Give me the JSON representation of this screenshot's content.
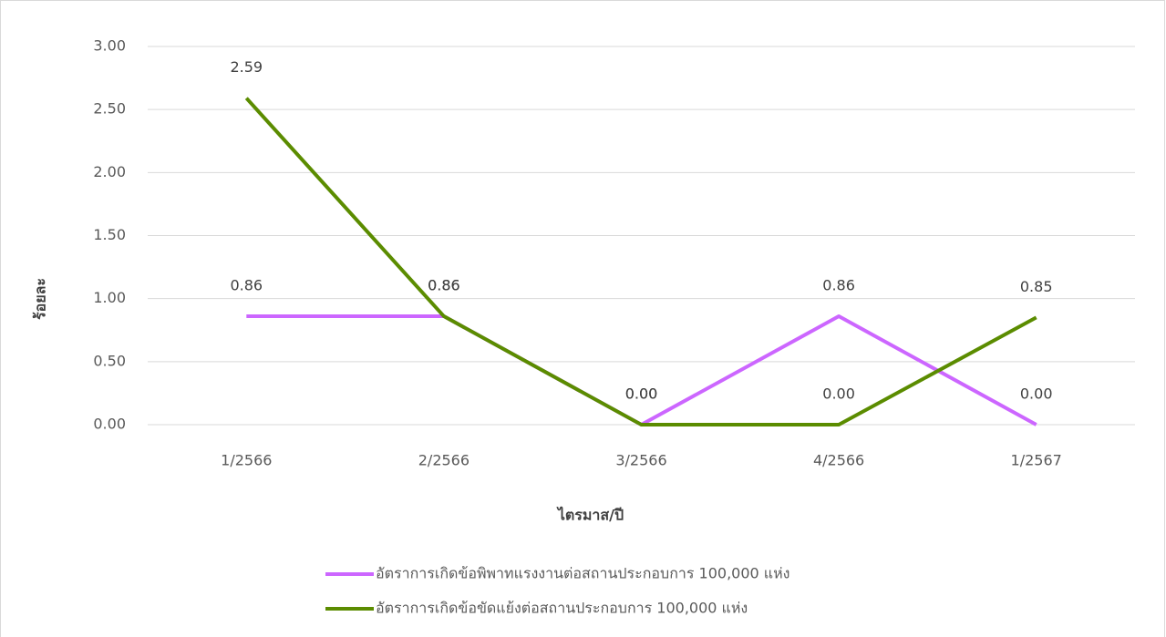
{
  "chart_data": {
    "type": "line",
    "categories": [
      "1/2566",
      "2/2566",
      "3/2566",
      "4/2566",
      "1/2567"
    ],
    "series": [
      {
        "name": "อัตราการเกิดข้อพิพาทแรงงานต่อสถานประกอบการ 100,000 แห่ง",
        "color": "#cc66ff",
        "values": [
          0.86,
          0.86,
          0,
          0.86,
          0
        ],
        "value_labels": [
          "0.86",
          "0.86",
          "0.00",
          "0.86",
          "0.00"
        ]
      },
      {
        "name": "อัตราการเกิดข้อขัดแย้งต่อสถานประกอบการ 100,000 แห่ง",
        "color": "#5b8c00",
        "values": [
          2.59,
          0.86,
          0,
          0,
          0.85
        ],
        "value_labels": [
          "2.59",
          "0.86",
          "0.00",
          "0.00",
          "0.85"
        ]
      }
    ],
    "xlabel": "ไตรมาส/ปี",
    "ylabel": "ร้อยละ",
    "ylim": [
      0,
      3
    ],
    "yticks": [
      {
        "value": 0,
        "label": "0.00"
      },
      {
        "value": 0.5,
        "label": "0.50"
      },
      {
        "value": 1,
        "label": "1.00"
      },
      {
        "value": 1.5,
        "label": "1.50"
      },
      {
        "value": 2,
        "label": "2.00"
      },
      {
        "value": 2.5,
        "label": "2.50"
      },
      {
        "value": 3,
        "label": "3.00"
      }
    ],
    "grid": true,
    "legend": "bottom"
  }
}
